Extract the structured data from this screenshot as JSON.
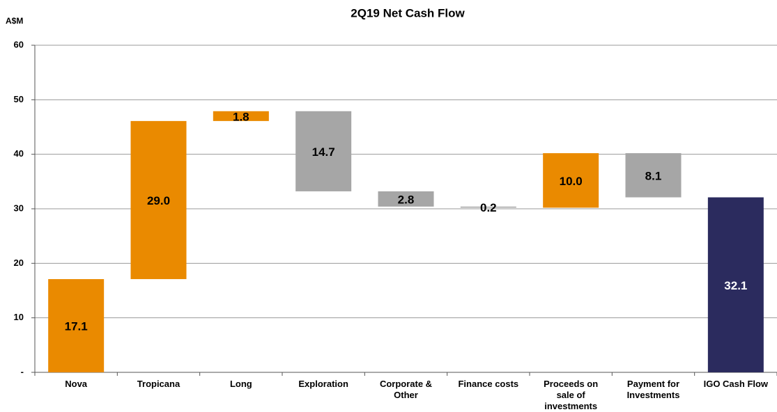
{
  "chart_data": {
    "type": "waterfall",
    "title": "2Q19 Net Cash Flow",
    "y_label": "A$M",
    "categories": [
      "Nova",
      "Tropicana",
      "Long",
      "Exploration",
      "Corporate & Other",
      "Finance costs",
      "Proceeds on sale of investments",
      "Payment for Investments",
      "IGO Cash Flow"
    ],
    "values": [
      17.1,
      29.0,
      1.8,
      -14.7,
      -2.8,
      -0.2,
      10.0,
      -8.1,
      32.1
    ],
    "value_labels": [
      "17.1",
      "29.0",
      "1.8",
      "14.7",
      "2.8",
      "0.2",
      "10.0",
      "8.1",
      "32.1"
    ],
    "measure": [
      "relative",
      "relative",
      "relative",
      "relative",
      "relative",
      "relative",
      "relative",
      "relative",
      "total"
    ],
    "colors": [
      "#ea8a00",
      "#ea8a00",
      "#ea8a00",
      "#a6a6a6",
      "#a6a6a6",
      "#a6a6a6",
      "#ea8a00",
      "#a6a6a6",
      "#2b2b5e"
    ],
    "ylim": [
      0,
      60
    ],
    "yticks": [
      {
        "value": 0,
        "label": "-"
      },
      10,
      20,
      30,
      40,
      50,
      60
    ],
    "grid": true
  }
}
